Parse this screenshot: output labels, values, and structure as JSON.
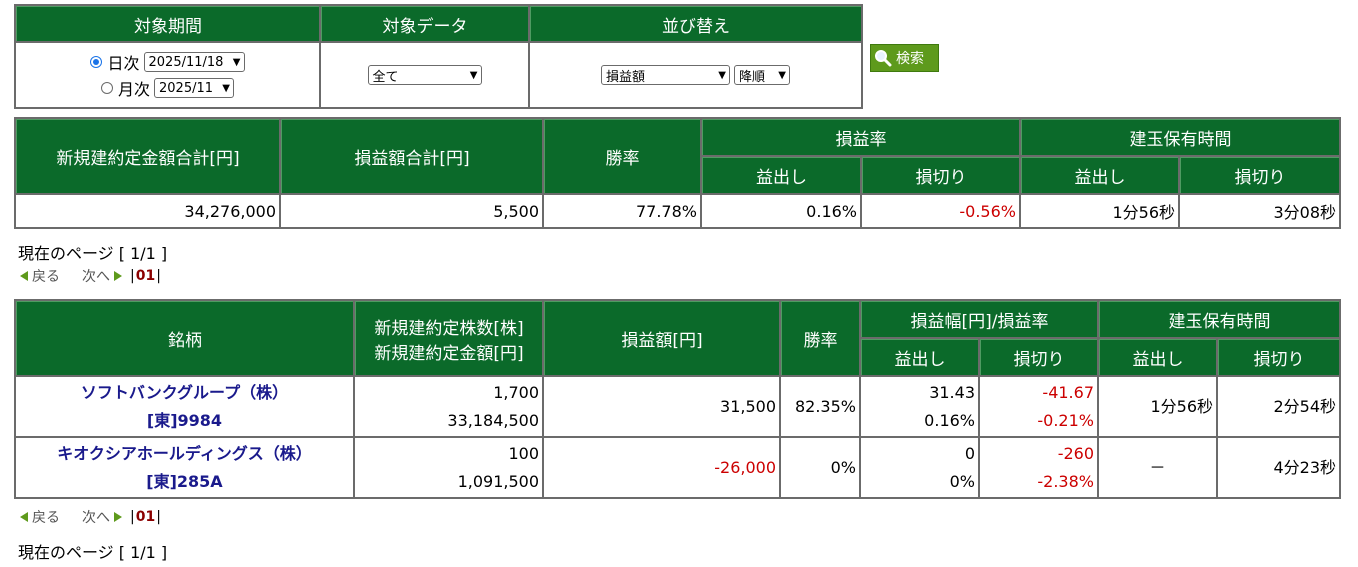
{
  "search": {
    "headers": [
      "対象期間",
      "対象データ",
      "並び替え"
    ],
    "daily_label": "日次",
    "monthly_label": "月次",
    "daily_value": "2025/11/18",
    "monthly_value": "2025/11",
    "data_value": "全て",
    "sort_value": "損益額",
    "order_value": "降順",
    "button_label": "検索"
  },
  "summary": {
    "headers": {
      "amount": "新規建約定金額合計[円]",
      "pl": "損益額合計[円]",
      "win": "勝率",
      "pl_rate": "損益率",
      "hold": "建玉保有時間",
      "profit": "益出し",
      "loss": "損切り"
    },
    "values": {
      "amount": "34,276,000",
      "pl": "5,500",
      "win": "77.78%",
      "rate_profit": "0.16%",
      "rate_loss": "-0.56%",
      "hold_profit": "1分56秒",
      "hold_loss": "3分08秒"
    }
  },
  "pager": {
    "current_label": "現在のページ [ 1/1 ]",
    "back": "戻る",
    "next": "次へ",
    "page": "01"
  },
  "detail": {
    "headers": {
      "stock": "銘柄",
      "qty1": "新規建約定株数[株]",
      "qty2": "新規建約定金額[円]",
      "pl": "損益額[円]",
      "win": "勝率",
      "range": "損益幅[円]/損益率",
      "hold": "建玉保有時間",
      "profit": "益出し",
      "loss": "損切り"
    },
    "rows": [
      {
        "name": "ソフトバンクグループ（株）",
        "code": "[東]9984",
        "shares": "1,700",
        "amount": "33,184,500",
        "pl": "31,500",
        "win": "82.35%",
        "profit_width": "31.43",
        "profit_rate": "0.16%",
        "loss_width": "-41.67",
        "loss_rate": "-0.21%",
        "hold_profit": "1分56秒",
        "hold_loss": "2分54秒"
      },
      {
        "name": "キオクシアホールディングス（株）",
        "code": "[東]285A",
        "shares": "100",
        "amount": "1,091,500",
        "pl": "-26,000",
        "win": "0%",
        "profit_width": "0",
        "profit_rate": "0%",
        "loss_width": "-260",
        "loss_rate": "-2.38%",
        "hold_profit": "－",
        "hold_loss": "4分23秒"
      }
    ]
  },
  "colors": {
    "header_green": "#0b6a2a",
    "negative_red": "#cc0000",
    "stock_blue": "#1a1a8c"
  }
}
